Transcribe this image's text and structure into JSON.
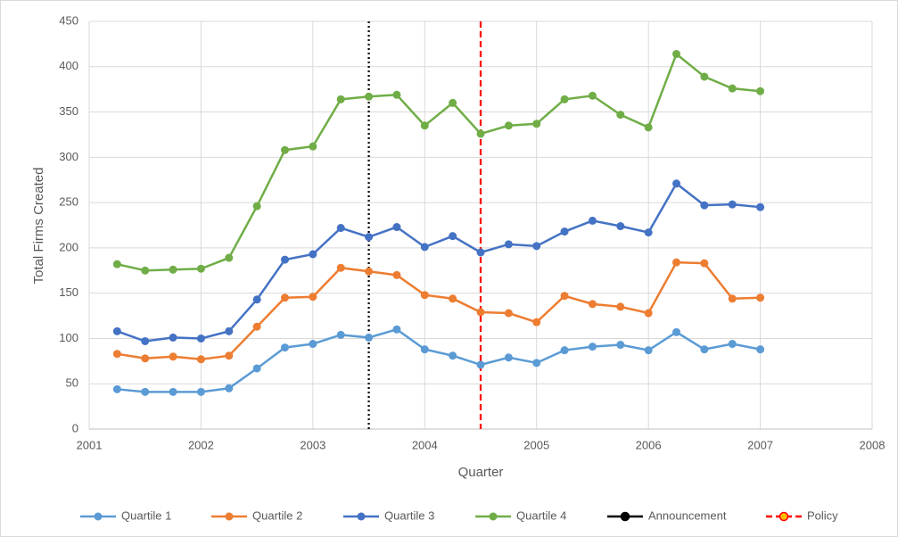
{
  "chart_data": {
    "type": "line",
    "xlabel": "Quarter",
    "ylabel": "Total Firms Created",
    "x": [
      2001.25,
      2001.5,
      2001.75,
      2002,
      2002.25,
      2002.5,
      2002.75,
      2003,
      2003.25,
      2003.5,
      2003.75,
      2004,
      2004.25,
      2004.5,
      2004.75,
      2005,
      2005.25,
      2005.5,
      2005.75,
      2006,
      2006.25,
      2006.5,
      2006.75,
      2007
    ],
    "series": [
      {
        "name": "Quartile 1",
        "color": "#5b9bd5",
        "values": [
          44,
          41,
          41,
          41,
          45,
          67,
          90,
          94,
          104,
          101,
          110,
          88,
          81,
          71,
          79,
          73,
          87,
          91,
          93,
          87,
          107,
          88,
          94,
          88
        ]
      },
      {
        "name": "Quartile 2",
        "color": "#ed7d31",
        "values": [
          83,
          78,
          80,
          77,
          81,
          113,
          145,
          146,
          178,
          174,
          170,
          148,
          144,
          129,
          128,
          118,
          147,
          138,
          135,
          128,
          184,
          183,
          144,
          145
        ]
      },
      {
        "name": "Quartile 3",
        "color": "#4472c4",
        "values": [
          108,
          97,
          101,
          100,
          108,
          143,
          187,
          193,
          222,
          212,
          223,
          201,
          213,
          195,
          204,
          202,
          218,
          230,
          224,
          217,
          271,
          247,
          248,
          245
        ]
      },
      {
        "name": "Quartile 4",
        "color": "#70ad47",
        "values": [
          182,
          175,
          176,
          177,
          189,
          246,
          308,
          312,
          364,
          367,
          369,
          335,
          360,
          326,
          335,
          337,
          364,
          368,
          347,
          333,
          414,
          389,
          376,
          373
        ]
      }
    ],
    "vlines": [
      {
        "name": "Announcement",
        "color": "#000000",
        "x": 2003.5,
        "style": "dotted"
      },
      {
        "name": "Policy",
        "color": "#ff0000",
        "x": 2004.5,
        "style": "dashed"
      }
    ],
    "xlim": [
      2001,
      2008
    ],
    "xticks": [
      2001,
      2002,
      2003,
      2004,
      2005,
      2006,
      2007,
      2008
    ],
    "ylim": [
      0,
      450
    ],
    "yticks": [
      0,
      50,
      100,
      150,
      200,
      250,
      300,
      350,
      400,
      450
    ],
    "grid": true,
    "legend": "bottom"
  }
}
